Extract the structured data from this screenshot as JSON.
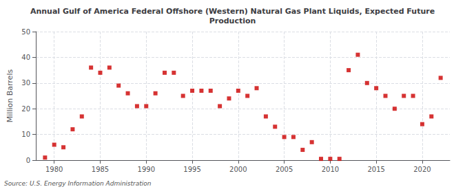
{
  "chart_data": {
    "type": "scatter",
    "title": "Annual Gulf of America Federal Offshore (Western) Natural Gas Plant Liquids, Expected Future\nProduction",
    "ylabel": "Million Barrels",
    "annotations": [
      "Source: U.S. Energy Information Administration"
    ],
    "color": "#cc0000",
    "marker": "square",
    "grid": true,
    "xlim": [
      1978,
      2023
    ],
    "ylim": [
      0,
      50
    ],
    "xticks": [
      1980,
      1985,
      1990,
      1995,
      2000,
      2005,
      2010,
      2015,
      2020
    ],
    "yticks": [
      0,
      10,
      20,
      30,
      40,
      50
    ],
    "x": [
      1979,
      1980,
      1981,
      1982,
      1983,
      1984,
      1985,
      1986,
      1987,
      1988,
      1989,
      1990,
      1991,
      1992,
      1993,
      1994,
      1995,
      1996,
      1997,
      1998,
      1999,
      2000,
      2001,
      2002,
      2003,
      2004,
      2005,
      2006,
      2007,
      2008,
      2009,
      2010,
      2011,
      2012,
      2013,
      2014,
      2015,
      2016,
      2017,
      2018,
      2019,
      2020,
      2021,
      2022
    ],
    "values": [
      1.0,
      6.0,
      5.0,
      12.0,
      17.0,
      36.0,
      34.0,
      36.0,
      29.0,
      26.0,
      21.0,
      21.0,
      26.0,
      34.0,
      34.0,
      25.0,
      27.0,
      27.0,
      27.0,
      21.0,
      24.0,
      27.0,
      25.0,
      28.0,
      17.0,
      13.0,
      9.0,
      9.0,
      4.0,
      7.0,
      0.5,
      0.5,
      0.5,
      35.0,
      41.0,
      30.0,
      28.0,
      25.0,
      20.0,
      25.0,
      25.0,
      14.0,
      17.0,
      32.0
    ]
  }
}
